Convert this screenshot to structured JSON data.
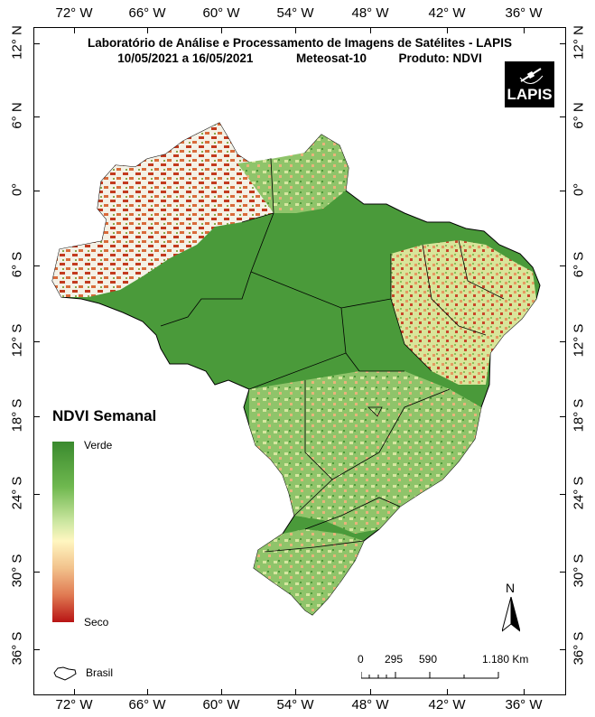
{
  "header": {
    "line1": "Laboratório de Análise e Processamento de Imagens de Satélites - LAPIS",
    "period": "10/05/2021  a  16/05/2021",
    "satellite": "Meteosat-10",
    "product": "Produto: NDVI",
    "logo_text": "LAPIS"
  },
  "longitudes": [
    "72° W",
    "66° W",
    "60° W",
    "54° W",
    "48° W",
    "42° W",
    "36° W"
  ],
  "latitudes": [
    "12° N",
    "6° N",
    "0°",
    "6° S",
    "12° S",
    "18° S",
    "24° S",
    "30° S",
    "36° S"
  ],
  "legend": {
    "title": "NDVI Semanal",
    "top_label": "Verde",
    "bottom_label": "Seco",
    "colors": [
      "#3a8a2e",
      "#6fb84f",
      "#cfe8a3",
      "#fff6c0",
      "#f2c28c",
      "#e07a52",
      "#b81414"
    ],
    "boundary_label": "Brasil"
  },
  "scale_bar": {
    "labels": [
      "0",
      "295",
      "590",
      "1.180 Km"
    ]
  },
  "north_arrow": {
    "label": "N"
  }
}
